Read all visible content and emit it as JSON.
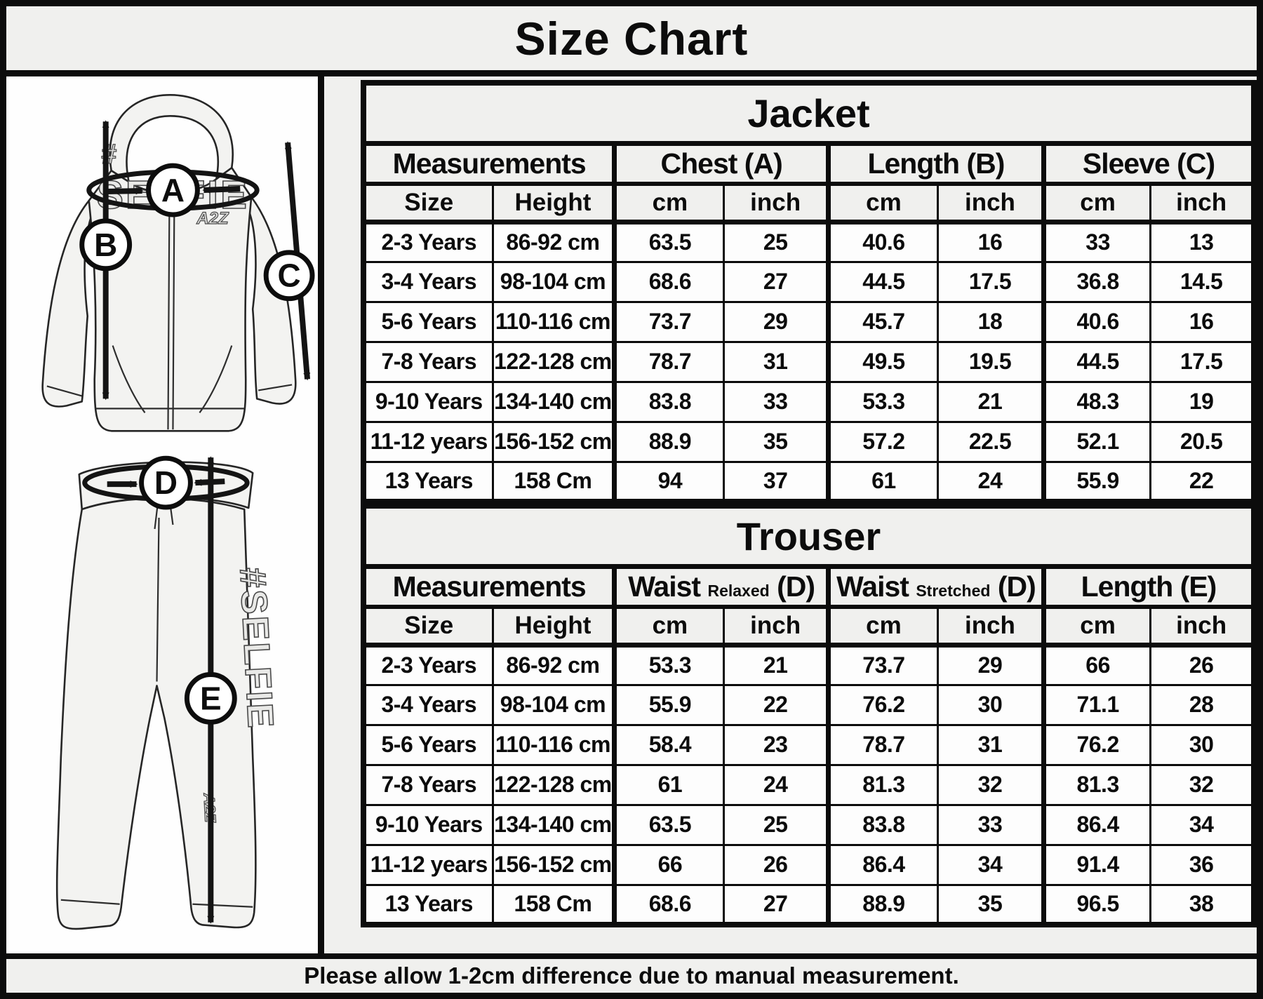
{
  "window": {
    "title": "Size Chart"
  },
  "diagram": {
    "chest_hash": "#",
    "chest_word": "SELFIE",
    "chest_code": "A2Z",
    "leg_word": "#SELFIE",
    "leg_code": "A2Z",
    "markers": {
      "a": "A",
      "b": "B",
      "c": "C",
      "d": "D",
      "e": "E"
    }
  },
  "tables": {
    "jacket": {
      "banner": "Jacket",
      "groups": [
        {
          "main": "Measurements"
        },
        {
          "main": "Chest (A)"
        },
        {
          "main": "Length (B)"
        },
        {
          "main": "Sleeve (C)"
        }
      ],
      "columns": [
        "Size",
        "Height",
        "cm",
        "inch",
        "cm",
        "inch",
        "cm",
        "inch"
      ],
      "rows": [
        [
          "2-3 Years",
          "86-92 cm",
          "63.5",
          "25",
          "40.6",
          "16",
          "33",
          "13"
        ],
        [
          "3-4 Years",
          "98-104 cm",
          "68.6",
          "27",
          "44.5",
          "17.5",
          "36.8",
          "14.5"
        ],
        [
          "5-6 Years",
          "110-116 cm",
          "73.7",
          "29",
          "45.7",
          "18",
          "40.6",
          "16"
        ],
        [
          "7-8 Years",
          "122-128 cm",
          "78.7",
          "31",
          "49.5",
          "19.5",
          "44.5",
          "17.5"
        ],
        [
          "9-10 Years",
          "134-140 cm",
          "83.8",
          "33",
          "53.3",
          "21",
          "48.3",
          "19"
        ],
        [
          "11-12 years",
          "156-152 cm",
          "88.9",
          "35",
          "57.2",
          "22.5",
          "52.1",
          "20.5"
        ],
        [
          "13 Years",
          "158 Cm",
          "94",
          "37",
          "61",
          "24",
          "55.9",
          "22"
        ]
      ]
    },
    "trouser": {
      "banner": "Trouser",
      "groups": [
        {
          "main": "Measurements"
        },
        {
          "main": "Waist",
          "qualifier": "Relaxed",
          "tail": "(D)"
        },
        {
          "main": "Waist",
          "qualifier": "Stretched",
          "tail": "(D)"
        },
        {
          "main": "Length (E)"
        }
      ],
      "columns": [
        "Size",
        "Height",
        "cm",
        "inch",
        "cm",
        "inch",
        "cm",
        "inch"
      ],
      "rows": [
        [
          "2-3 Years",
          "86-92 cm",
          "53.3",
          "21",
          "73.7",
          "29",
          "66",
          "26"
        ],
        [
          "3-4 Years",
          "98-104 cm",
          "55.9",
          "22",
          "76.2",
          "30",
          "71.1",
          "28"
        ],
        [
          "5-6 Years",
          "110-116 cm",
          "58.4",
          "23",
          "78.7",
          "31",
          "76.2",
          "30"
        ],
        [
          "7-8 Years",
          "122-128 cm",
          "61",
          "24",
          "81.3",
          "32",
          "81.3",
          "32"
        ],
        [
          "9-10 Years",
          "134-140 cm",
          "63.5",
          "25",
          "83.8",
          "33",
          "86.4",
          "34"
        ],
        [
          "11-12 years",
          "156-152 cm",
          "66",
          "26",
          "86.4",
          "34",
          "91.4",
          "36"
        ],
        [
          "13 Years",
          "158 Cm",
          "68.6",
          "27",
          "88.9",
          "35",
          "96.5",
          "38"
        ]
      ]
    }
  },
  "footer": {
    "note": "Please allow 1-2cm difference due to manual measurement."
  }
}
